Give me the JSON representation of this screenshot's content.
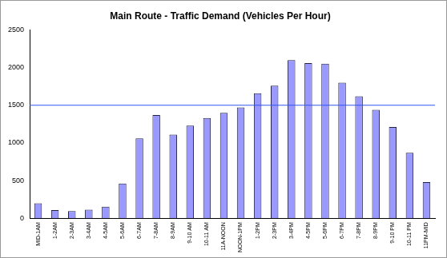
{
  "chart_data": {
    "type": "bar",
    "title": "Main Route - Traffic Demand (Vehicles Per Hour)",
    "categories": [
      "MID-1AM",
      "1-2AM",
      "2-3AM",
      "3-4AM",
      "4-5AM",
      "5-6AM",
      "6-7AM",
      "7-8AM",
      "8-9AM",
      "9-10 AM",
      "10-11 AM",
      "11A-NOON",
      "NOON-1PM",
      "1-2PM",
      "2-3PM",
      "3-4PM",
      "4-5PM",
      "5-6PM",
      "6-7PM",
      "7-8PM",
      "8-9PM",
      "9-10 PM",
      "10-11 PM",
      "11PM-MID"
    ],
    "values": [
      200,
      110,
      95,
      115,
      155,
      460,
      1060,
      1370,
      1110,
      1230,
      1330,
      1400,
      1470,
      1660,
      1760,
      2100,
      2060,
      2050,
      1800,
      1620,
      1440,
      1210,
      870,
      480
    ],
    "threshold": 1500,
    "color": "#9999ff",
    "ylim": [
      0,
      2500
    ],
    "yticks": [
      0,
      500,
      1000,
      1500,
      2000,
      2500
    ],
    "grid": false
  }
}
